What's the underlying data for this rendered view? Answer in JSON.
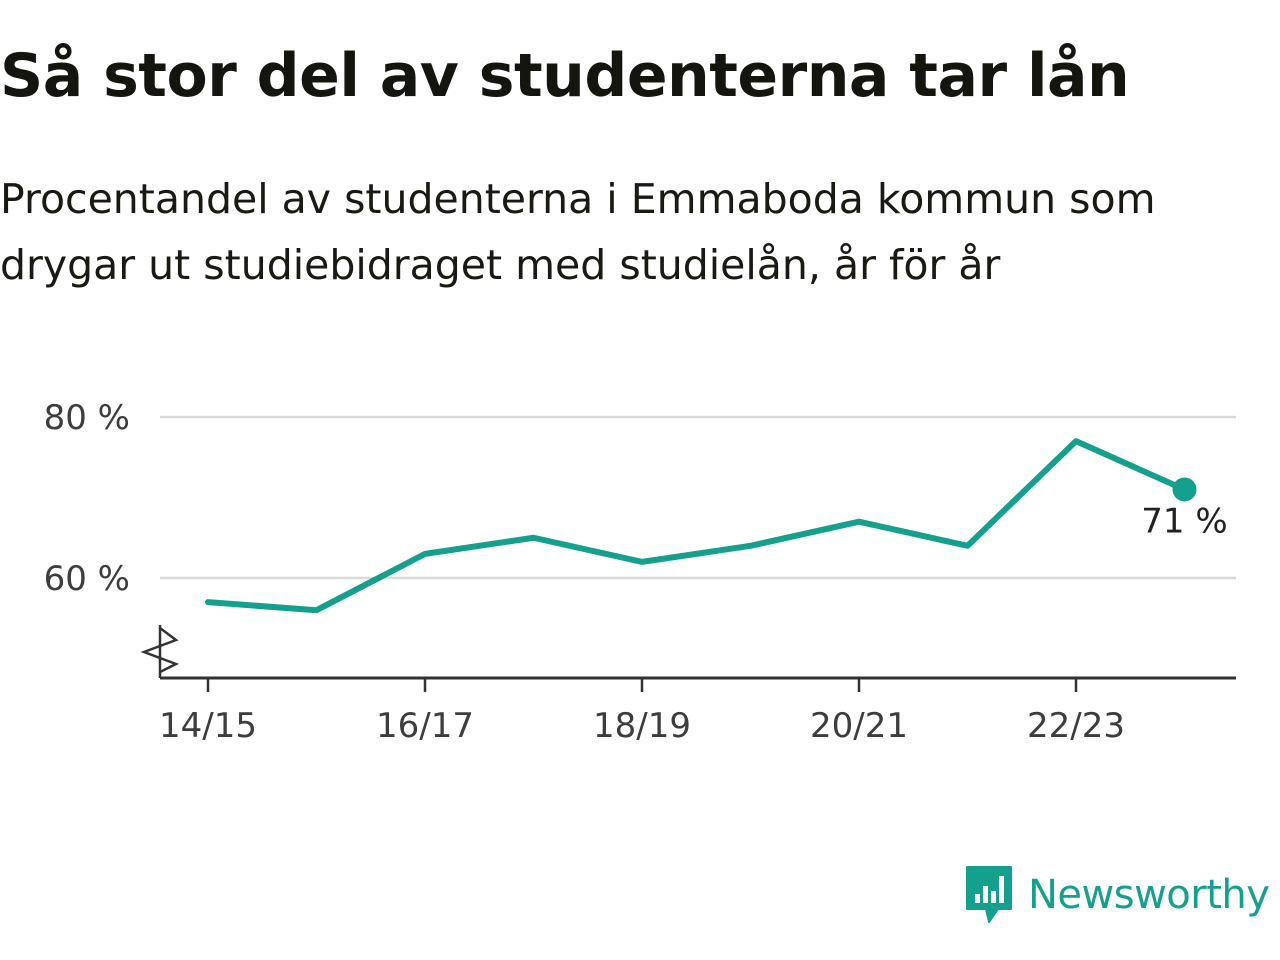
{
  "title": "Så stor del av studenterna tar lån",
  "subtitle": "Procentandel av studenterna i Emmaboda kommun som drygar ut studiebidraget med studielån, år för år",
  "brand": {
    "name": "Newsworthy",
    "color": "#15a08d",
    "icon": "bar-chart-speech-bubble-icon"
  },
  "chart_data": {
    "type": "line",
    "x": [
      "14/15",
      "15/16",
      "16/17",
      "17/18",
      "18/19",
      "19/20",
      "20/21",
      "21/22",
      "22/23",
      "23/24"
    ],
    "x_tick_labels": [
      "14/15",
      "16/17",
      "18/19",
      "20/21",
      "22/23"
    ],
    "series": [
      {
        "values": [
          57,
          56,
          63,
          65,
          62,
          64,
          67,
          64,
          77,
          71
        ],
        "color": "#15a08d"
      }
    ],
    "y_ticks": [
      60,
      80
    ],
    "y_tick_labels": [
      "60 %",
      "80 %"
    ],
    "ylim": [
      48,
      80
    ],
    "axis_break": true,
    "grid": true,
    "end_label": "71 %"
  }
}
